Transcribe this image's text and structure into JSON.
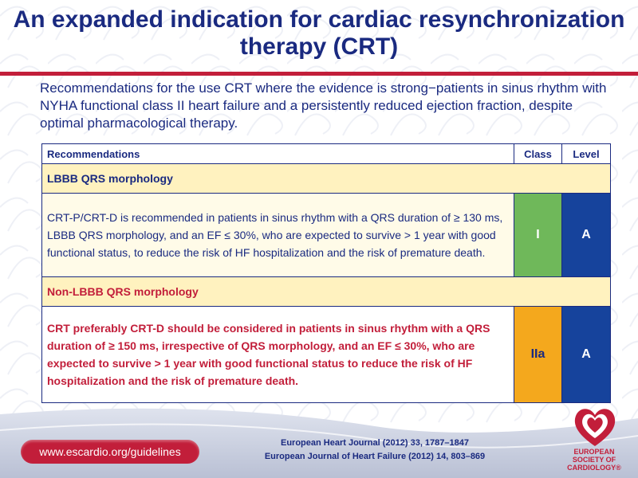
{
  "title": "An expanded indication for cardiac resynchronization therapy (CRT)",
  "intro": "Recommendations for the use CRT where the evidence is strong−patients in sinus rhythm with NYHA functional class II heart failure and a persistently reduced ejection fraction, despite optimal pharmacological therapy.",
  "table": {
    "headers": {
      "recommendations": "Recommendations",
      "class": "Class",
      "level": "Level"
    },
    "sections": [
      {
        "heading": "LBBB QRS morphology",
        "text": "CRT-P/CRT-D is recommended in patients in sinus rhythm with a QRS duration of ≥ 130 ms, LBBB QRS morphology, and an EF ≤ 30%, who are expected to survive > 1 year with good functional status, to reduce the risk of HF hospitalization and the risk of premature death.",
        "class": "I",
        "level": "A"
      },
      {
        "heading": "Non-LBBB QRS morphology",
        "text": "CRT preferably CRT-D should be considered in patients in sinus rhythm with a QRS duration of ≥ 150 ms, irrespective of QRS morphology, and an EF ≤ 30%, who are expected to survive > 1 year with good functional status to reduce the risk of HF hospitalization and the risk of premature death.",
        "class": "IIa",
        "level": "A"
      }
    ]
  },
  "footer": {
    "url": "www.escardio.org/guidelines",
    "refs": [
      "European Heart Journal (2012) 33, 1787–1847",
      "European Journal of Heart Failure (2012) 14, 803–869"
    ],
    "logo_lines": [
      "EUROPEAN",
      "SOCIETY OF",
      "CARDIOLOGY®"
    ]
  },
  "colors": {
    "title_blue": "#1a2a80",
    "accent_red": "#c21e3a",
    "class_I_green": "#6fb85a",
    "class_IIa_orange": "#f4a81d",
    "level_blue": "#16439c"
  }
}
